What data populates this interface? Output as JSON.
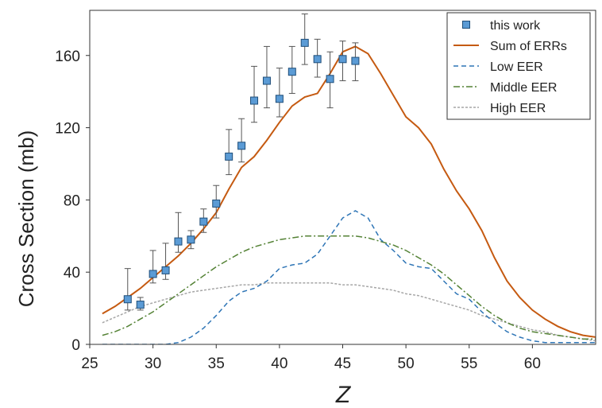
{
  "chart_data": {
    "type": "line",
    "xlabel": "Z",
    "ylabel": "Cross Section (mb)",
    "xlim": [
      25,
      65
    ],
    "ylim": [
      0,
      185
    ],
    "xticks": [
      25,
      30,
      35,
      40,
      45,
      50,
      55,
      60
    ],
    "yticks": [
      0,
      40,
      80,
      120,
      160
    ],
    "legend_position": "top-right",
    "colors": {
      "this_work": "#5b9bd5",
      "sum": "#c55a11",
      "low": "#2e75b6",
      "middle": "#548235",
      "high": "#a6a6a6"
    },
    "legend": [
      "this work",
      "Sum of ERRs",
      "Low EER",
      "Middle EER",
      "High EER"
    ],
    "series": [
      {
        "name": "Sum of ERRs",
        "style": "solid",
        "x": [
          26,
          27,
          28,
          29,
          30,
          31,
          32,
          33,
          34,
          35,
          36,
          37,
          38,
          39,
          40,
          41,
          42,
          43,
          44,
          45,
          46,
          47,
          48,
          49,
          50,
          51,
          52,
          53,
          54,
          55,
          56,
          57,
          58,
          59,
          60,
          61,
          62,
          63,
          64,
          65
        ],
        "y": [
          17,
          21,
          26,
          31,
          37,
          43,
          49,
          56,
          64,
          73,
          86,
          98,
          104,
          113,
          123,
          132,
          137,
          139,
          150,
          162,
          165,
          161,
          150,
          138,
          126,
          120,
          111,
          97,
          85,
          75,
          63,
          48,
          35,
          26,
          19,
          14,
          10,
          7,
          5,
          4
        ],
        "color_key": "sum"
      },
      {
        "name": "Low EER",
        "style": "dashed",
        "x": [
          26,
          27,
          28,
          29,
          30,
          31,
          32,
          33,
          34,
          35,
          36,
          37,
          38,
          39,
          40,
          41,
          42,
          43,
          44,
          45,
          46,
          47,
          48,
          49,
          50,
          51,
          52,
          53,
          54,
          55,
          56,
          57,
          58,
          59,
          60,
          61,
          62,
          63,
          64,
          65
        ],
        "y": [
          0,
          0,
          0,
          0,
          0,
          0,
          1,
          4,
          9,
          16,
          24,
          29,
          31,
          35,
          42,
          44,
          45,
          50,
          60,
          70,
          74,
          70,
          58,
          52,
          45,
          43,
          42,
          35,
          28,
          25,
          18,
          12,
          7,
          4,
          2,
          1,
          1,
          1,
          1,
          1
        ],
        "color_key": "low"
      },
      {
        "name": "Middle EER",
        "style": "dash-dot",
        "x": [
          26,
          27,
          28,
          29,
          30,
          31,
          32,
          33,
          34,
          35,
          36,
          37,
          38,
          39,
          40,
          41,
          42,
          43,
          44,
          45,
          46,
          47,
          48,
          49,
          50,
          51,
          52,
          53,
          54,
          55,
          56,
          57,
          58,
          59,
          60,
          61,
          62,
          63,
          64,
          65
        ],
        "y": [
          5,
          7,
          10,
          14,
          18,
          23,
          28,
          33,
          38,
          43,
          47,
          51,
          54,
          56,
          58,
          59,
          60,
          60,
          60,
          60,
          60,
          59,
          57,
          55,
          52,
          48,
          44,
          39,
          33,
          27,
          21,
          16,
          12,
          9,
          7,
          6,
          5,
          4,
          3,
          3
        ],
        "color_key": "middle"
      },
      {
        "name": "High EER",
        "style": "dotted",
        "x": [
          26,
          27,
          28,
          29,
          30,
          31,
          32,
          33,
          34,
          35,
          36,
          37,
          38,
          39,
          40,
          41,
          42,
          43,
          44,
          45,
          46,
          47,
          48,
          49,
          50,
          51,
          52,
          53,
          54,
          55,
          56,
          57,
          58,
          59,
          60,
          61,
          62,
          63,
          64,
          65
        ],
        "y": [
          12,
          15,
          18,
          21,
          23,
          25,
          27,
          29,
          30,
          31,
          32,
          33,
          33,
          34,
          34,
          34,
          34,
          34,
          34,
          33,
          33,
          32,
          31,
          30,
          28,
          27,
          25,
          23,
          21,
          19,
          16,
          14,
          12,
          10,
          8,
          7,
          5,
          4,
          3,
          2
        ],
        "color_key": "high"
      }
    ],
    "points": {
      "name": "this work",
      "color_key": "this_work",
      "x": [
        28,
        29,
        30,
        31,
        32,
        33,
        34,
        35,
        36,
        37,
        38,
        39,
        40,
        41,
        42,
        43,
        44,
        45,
        46
      ],
      "y": [
        25,
        22,
        39,
        41,
        57,
        58,
        68,
        78,
        104,
        110,
        135,
        146,
        136,
        151,
        167,
        158,
        147,
        158,
        157
      ],
      "err_low": [
        6,
        3,
        5,
        5,
        6,
        5,
        6,
        8,
        10,
        9,
        12,
        15,
        10,
        12,
        12,
        10,
        16,
        12,
        11
      ],
      "err_high": [
        17,
        4,
        13,
        15,
        16,
        5,
        7,
        10,
        15,
        15,
        19,
        19,
        17,
        14,
        16,
        11,
        15,
        10,
        10
      ]
    }
  }
}
